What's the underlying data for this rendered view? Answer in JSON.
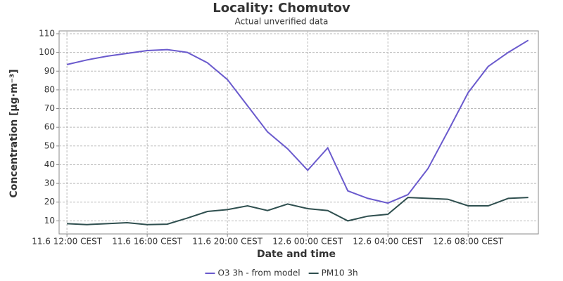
{
  "chart_data": {
    "type": "line",
    "title": "Locality: Chomutov",
    "subtitle": "Actual unverified data",
    "x_label": "Date and time",
    "y_label": "Concentration [µg·m⁻³]",
    "categories": [
      "11.6 12:00 CEST",
      null,
      null,
      null,
      "11.6 16:00 CEST",
      null,
      null,
      null,
      "11.6 20:00 CEST",
      null,
      null,
      null,
      "12.6 00:00 CEST",
      null,
      null,
      null,
      "12.6 04:00 CEST",
      null,
      null,
      null,
      "12.6 08:00 CEST",
      null,
      null,
      null
    ],
    "series": [
      {
        "name": "O3 3h - from model",
        "color": "#6a5acd",
        "values": [
          93.5,
          96,
          98,
          99.5,
          101,
          101.5,
          100,
          94.5,
          85.5,
          71.5,
          57.5,
          48.5,
          37,
          49,
          26,
          22,
          19.5,
          24,
          38,
          58,
          78.5,
          92.5,
          100,
          106.5
        ]
      },
      {
        "name": "PM10 3h",
        "color": "#2f4f4f",
        "values": [
          8.5,
          8,
          8.5,
          9,
          8,
          8.2,
          11.5,
          15,
          16,
          18,
          15.5,
          19,
          16.5,
          15.5,
          10,
          12.5,
          13.5,
          22.5,
          22,
          21.5,
          18,
          18,
          22,
          22.5
        ]
      }
    ],
    "ylim": [
      3,
      111.5
    ],
    "yticks": [
      10,
      20,
      30,
      40,
      50,
      60,
      70,
      80,
      90,
      100,
      110
    ],
    "grid": true,
    "legend": "bottom"
  }
}
